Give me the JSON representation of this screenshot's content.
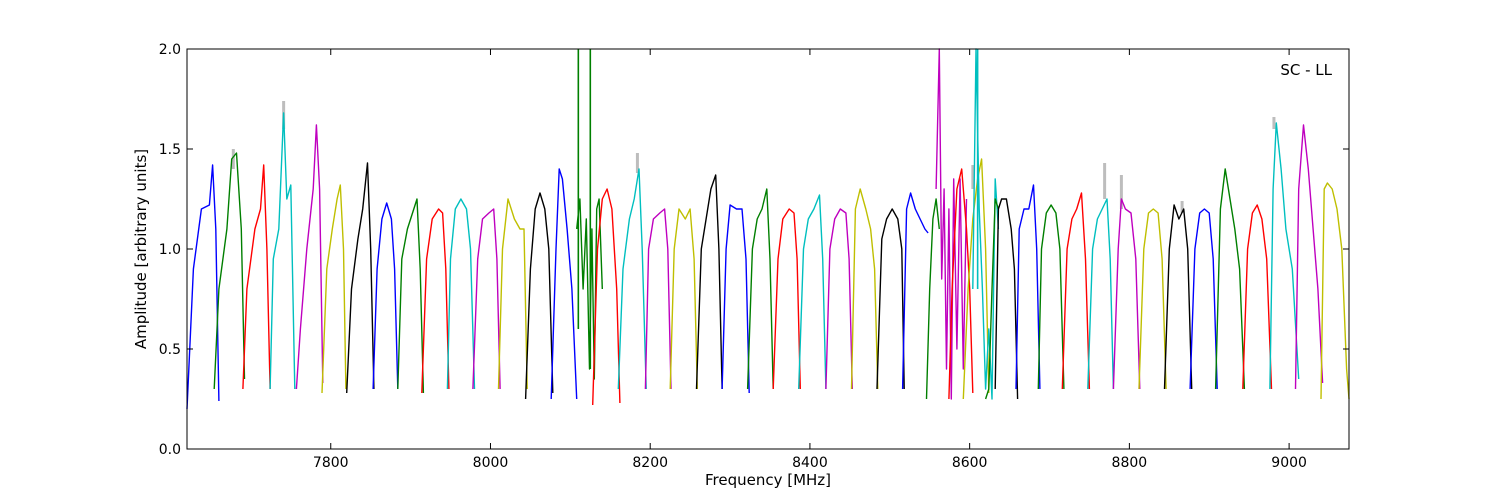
{
  "chart_data": {
    "type": "line",
    "annotation": "SC - LL",
    "xlabel": "Frequency [MHz]",
    "ylabel": "Amplitude [arbitrary units]",
    "xlim": [
      7620,
      9075
    ],
    "ylim": [
      0.0,
      2.0
    ],
    "xticks": [
      7800,
      8000,
      8200,
      8400,
      8600,
      8800,
      9000
    ],
    "yticks": [
      0.0,
      0.5,
      1.0,
      1.5,
      2.0
    ],
    "xtick_labels": [
      "7800",
      "8000",
      "8200",
      "8400",
      "8600",
      "8800",
      "9000"
    ],
    "ytick_labels": [
      "0.0",
      "0.5",
      "1.0",
      "1.5",
      "2.0"
    ],
    "grid": false,
    "colors": {
      "blue": "#0000ff",
      "green": "#007f00",
      "red": "#ff0000",
      "cyan": "#00bfbf",
      "magenta": "#bf00bf",
      "olive": "#bfbf00",
      "black": "#000000",
      "shadow": "#bdbdbd"
    },
    "series": [
      {
        "color": "blue",
        "x": [
          7620,
          7628,
          7638,
          7648,
          7652,
          7656,
          7660
        ],
        "y": [
          0.2,
          0.9,
          1.2,
          1.22,
          1.42,
          1.1,
          0.24
        ]
      },
      {
        "color": "green",
        "x": [
          7654,
          7660,
          7670,
          7676,
          7682,
          7688,
          7692
        ],
        "y": [
          0.3,
          0.8,
          1.1,
          1.45,
          1.48,
          1.1,
          0.35
        ]
      },
      {
        "color": "red",
        "x": [
          7690,
          7695,
          7705,
          7712,
          7716,
          7720,
          7724
        ],
        "y": [
          0.3,
          0.8,
          1.1,
          1.2,
          1.42,
          1.0,
          0.3
        ]
      },
      {
        "color": "cyan",
        "x": [
          7724,
          7728,
          7735,
          7741,
          7745,
          7750,
          7755
        ],
        "y": [
          0.3,
          0.95,
          1.1,
          1.68,
          1.25,
          1.32,
          0.3
        ]
      },
      {
        "color": "magenta",
        "x": [
          7757,
          7762,
          7770,
          7778,
          7782,
          7786,
          7790
        ],
        "y": [
          0.3,
          0.6,
          1.0,
          1.3,
          1.62,
          1.3,
          0.33
        ]
      },
      {
        "color": "olive",
        "x": [
          7789,
          7795,
          7802,
          7808,
          7812,
          7816,
          7819
        ],
        "y": [
          0.28,
          0.9,
          1.1,
          1.25,
          1.32,
          1.0,
          0.3
        ]
      },
      {
        "color": "black",
        "x": [
          7820,
          7826,
          7834,
          7840,
          7846,
          7850,
          7854
        ],
        "y": [
          0.28,
          0.8,
          1.05,
          1.2,
          1.43,
          1.0,
          0.3
        ]
      },
      {
        "color": "blue",
        "x": [
          7853,
          7858,
          7864,
          7870,
          7876,
          7880,
          7884
        ],
        "y": [
          0.3,
          0.9,
          1.15,
          1.23,
          1.15,
          0.9,
          0.3
        ]
      },
      {
        "color": "green",
        "x": [
          7884,
          7889,
          7896,
          7904,
          7908,
          7912,
          7916
        ],
        "y": [
          0.3,
          0.95,
          1.1,
          1.2,
          1.25,
          0.9,
          0.28
        ]
      },
      {
        "color": "red",
        "x": [
          7914,
          7920,
          7927,
          7935,
          7940,
          7944,
          7948
        ],
        "y": [
          0.28,
          0.95,
          1.15,
          1.2,
          1.18,
          0.9,
          0.3
        ]
      },
      {
        "color": "cyan",
        "x": [
          7946,
          7950,
          7956,
          7963,
          7970,
          7975,
          7980
        ],
        "y": [
          0.3,
          0.95,
          1.2,
          1.25,
          1.2,
          1.0,
          0.3
        ]
      },
      {
        "color": "magenta",
        "x": [
          7978,
          7984,
          7990,
          7998,
          8004,
          8008,
          8012
        ],
        "y": [
          0.3,
          0.95,
          1.15,
          1.18,
          1.2,
          0.95,
          0.3
        ]
      },
      {
        "color": "olive",
        "x": [
          8010,
          8015,
          8022,
          8030,
          8037,
          8042,
          8046
        ],
        "y": [
          0.3,
          1.0,
          1.25,
          1.15,
          1.1,
          1.1,
          0.3
        ]
      },
      {
        "color": "black",
        "x": [
          8044,
          8050,
          8056,
          8062,
          8068,
          8073,
          8078
        ],
        "y": [
          0.25,
          0.9,
          1.2,
          1.28,
          1.2,
          1.0,
          0.28
        ]
      },
      {
        "color": "blue",
        "x": [
          8076,
          8082,
          8086,
          8090,
          8096,
          8102,
          8108
        ],
        "y": [
          0.25,
          1.0,
          1.4,
          1.35,
          1.1,
          0.8,
          0.25
        ]
      },
      {
        "color": "green",
        "x": [
          8108,
          8112,
          8116,
          8120,
          8124,
          8127,
          8130,
          8133,
          8136,
          8140
        ],
        "y": [
          1.1,
          1.25,
          0.8,
          1.15,
          0.4,
          1.1,
          0.35,
          1.2,
          1.25,
          0.8
        ]
      },
      {
        "color": "red",
        "x": [
          8128,
          8134,
          8140,
          8146,
          8152,
          8158,
          8162
        ],
        "y": [
          0.22,
          1.0,
          1.25,
          1.3,
          1.2,
          0.8,
          0.23
        ]
      },
      {
        "color": "cyan",
        "x": [
          8160,
          8166,
          8174,
          8180,
          8186,
          8190,
          8195
        ],
        "y": [
          0.3,
          0.9,
          1.15,
          1.25,
          1.4,
          1.0,
          0.3
        ]
      },
      {
        "color": "magenta",
        "x": [
          8194,
          8198,
          8204,
          8212,
          8218,
          8222,
          8226
        ],
        "y": [
          0.3,
          1.0,
          1.15,
          1.18,
          1.2,
          1.0,
          0.3
        ]
      },
      {
        "color": "olive",
        "x": [
          8225,
          8230,
          8236,
          8244,
          8250,
          8255,
          8259
        ],
        "y": [
          0.3,
          1.0,
          1.2,
          1.15,
          1.2,
          0.95,
          0.3
        ]
      },
      {
        "color": "black",
        "x": [
          8258,
          8264,
          8270,
          8276,
          8282,
          8286,
          8290
        ],
        "y": [
          0.3,
          1.0,
          1.15,
          1.3,
          1.37,
          1.0,
          0.3
        ]
      },
      {
        "color": "blue",
        "x": [
          8290,
          8295,
          8300,
          8308,
          8315,
          8320,
          8324
        ],
        "y": [
          0.3,
          1.0,
          1.22,
          1.2,
          1.2,
          0.95,
          0.28
        ]
      },
      {
        "color": "green",
        "x": [
          8322,
          8328,
          8334,
          8340,
          8346,
          8350,
          8354
        ],
        "y": [
          0.3,
          1.0,
          1.15,
          1.2,
          1.3,
          0.95,
          0.3
        ]
      },
      {
        "color": "red",
        "x": [
          8354,
          8360,
          8366,
          8374,
          8380,
          8384,
          8388
        ],
        "y": [
          0.3,
          0.95,
          1.15,
          1.2,
          1.18,
          0.95,
          0.3
        ]
      },
      {
        "color": "cyan",
        "x": [
          8386,
          8392,
          8398,
          8405,
          8412,
          8416,
          8420
        ],
        "y": [
          0.3,
          1.0,
          1.15,
          1.2,
          1.27,
          0.95,
          0.3
        ]
      },
      {
        "color": "magenta",
        "x": [
          8420,
          8425,
          8431,
          8438,
          8445,
          8449,
          8453
        ],
        "y": [
          0.3,
          1.0,
          1.15,
          1.2,
          1.18,
          0.95,
          0.3
        ]
      },
      {
        "color": "olive",
        "x": [
          8452,
          8457,
          8463,
          8470,
          8476,
          8481,
          8485
        ],
        "y": [
          0.3,
          1.2,
          1.3,
          1.2,
          1.1,
          0.9,
          0.3
        ]
      },
      {
        "color": "black",
        "x": [
          8484,
          8490,
          8496,
          8503,
          8510,
          8515,
          8518
        ],
        "y": [
          0.3,
          1.05,
          1.15,
          1.2,
          1.15,
          1.0,
          0.3
        ]
      },
      {
        "color": "blue",
        "x": [
          8516,
          8521,
          8526,
          8532,
          8538,
          8544,
          8548
        ],
        "y": [
          0.3,
          1.2,
          1.28,
          1.2,
          1.15,
          1.1,
          1.08
        ]
      },
      {
        "color": "green",
        "x": [
          8546,
          8550,
          8554,
          8558,
          8562
        ],
        "y": [
          0.25,
          0.8,
          1.15,
          1.25,
          1.1
        ]
      },
      {
        "color": "magenta",
        "x": [
          8558,
          8562,
          8565,
          8568,
          8571,
          8574,
          8577,
          8580,
          8584,
          8588,
          8592,
          8596
        ],
        "y": [
          1.3,
          2.0,
          0.85,
          1.3,
          0.4,
          1.2,
          0.25,
          1.35,
          0.5,
          1.35,
          0.4,
          1.25
        ]
      },
      {
        "color": "red",
        "x": [
          8574,
          8578,
          8584,
          8590,
          8596,
          8600,
          8604
        ],
        "y": [
          0.25,
          0.8,
          1.3,
          1.4,
          1.1,
          0.8,
          0.28
        ]
      },
      {
        "color": "olive",
        "x": [
          8592,
          8598,
          8604,
          8610,
          8615,
          8620,
          8624
        ],
        "y": [
          0.25,
          0.8,
          1.15,
          1.35,
          1.45,
          1.0,
          0.28
        ]
      },
      {
        "color": "cyan",
        "x": [
          8604,
          8608,
          8612,
          8616,
          8620,
          8624,
          8628,
          8632,
          8636
        ],
        "y": [
          0.8,
          2.0,
          1.2,
          0.8,
          0.3,
          0.6,
          0.25,
          1.35,
          1.1
        ]
      },
      {
        "color": "green",
        "x": [
          8620,
          8624,
          8628,
          8632,
          8636
        ],
        "y": [
          0.25,
          0.3,
          0.8,
          1.25,
          1.2
        ]
      },
      {
        "color": "black",
        "x": [
          8632,
          8636,
          8640,
          8646,
          8652,
          8656,
          8660
        ],
        "y": [
          0.3,
          1.2,
          1.25,
          1.25,
          1.1,
          0.9,
          0.25
        ]
      },
      {
        "color": "blue",
        "x": [
          8658,
          8662,
          8668,
          8674,
          8680,
          8684,
          8688
        ],
        "y": [
          0.3,
          1.1,
          1.2,
          1.2,
          1.32,
          1.0,
          0.3
        ]
      },
      {
        "color": "green",
        "x": [
          8686,
          8690,
          8696,
          8702,
          8708,
          8713,
          8718
        ],
        "y": [
          0.3,
          1.0,
          1.18,
          1.22,
          1.18,
          1.0,
          0.3
        ]
      },
      {
        "color": "red",
        "x": [
          8716,
          8722,
          8728,
          8734,
          8740,
          8745,
          8750
        ],
        "y": [
          0.3,
          1.0,
          1.15,
          1.2,
          1.28,
          0.95,
          0.3
        ]
      },
      {
        "color": "cyan",
        "x": [
          8748,
          8754,
          8760,
          8766,
          8772,
          8776,
          8780
        ],
        "y": [
          0.3,
          1.0,
          1.15,
          1.2,
          1.25,
          0.95,
          0.3
        ]
      },
      {
        "color": "magenta",
        "x": [
          8780,
          8786,
          8790,
          8795,
          8802,
          8808,
          8813
        ],
        "y": [
          0.3,
          1.0,
          1.25,
          1.2,
          1.18,
          0.95,
          0.3
        ]
      },
      {
        "color": "olive",
        "x": [
          8812,
          8818,
          8824,
          8830,
          8836,
          8841,
          8846
        ],
        "y": [
          0.3,
          1.0,
          1.18,
          1.2,
          1.18,
          0.95,
          0.3
        ]
      },
      {
        "color": "black",
        "x": [
          8844,
          8850,
          8856,
          8862,
          8868,
          8873,
          8878
        ],
        "y": [
          0.3,
          1.0,
          1.22,
          1.15,
          1.2,
          1.0,
          0.3
        ]
      },
      {
        "color": "blue",
        "x": [
          8876,
          8882,
          8888,
          8894,
          8900,
          8905,
          8910
        ],
        "y": [
          0.3,
          1.0,
          1.18,
          1.2,
          1.18,
          0.95,
          0.3
        ]
      },
      {
        "color": "green",
        "x": [
          8908,
          8914,
          8920,
          8926,
          8932,
          8938,
          8944
        ],
        "y": [
          0.3,
          1.2,
          1.4,
          1.25,
          1.1,
          0.9,
          0.3
        ]
      },
      {
        "color": "red",
        "x": [
          8942,
          8948,
          8954,
          8960,
          8966,
          8972,
          8978
        ],
        "y": [
          0.3,
          1.0,
          1.18,
          1.22,
          1.15,
          0.95,
          0.3
        ]
      },
      {
        "color": "cyan",
        "x": [
          8976,
          8980,
          8984,
          8990,
          8996,
          9004,
          9012
        ],
        "y": [
          0.3,
          1.3,
          1.63,
          1.4,
          1.1,
          0.9,
          0.35
        ]
      },
      {
        "color": "magenta",
        "x": [
          9008,
          9012,
          9018,
          9024,
          9030,
          9036,
          9042
        ],
        "y": [
          0.3,
          1.3,
          1.62,
          1.4,
          1.1,
          0.8,
          0.33
        ]
      },
      {
        "color": "olive",
        "x": [
          9040,
          9044,
          9048,
          9054,
          9060,
          9066,
          9072,
          9075
        ],
        "y": [
          0.25,
          1.3,
          1.33,
          1.3,
          1.2,
          1.0,
          0.4,
          0.25
        ]
      }
    ],
    "shadow_spikes": [
      {
        "x": 7741,
        "y": [
          1.6,
          1.74
        ]
      },
      {
        "x": 7678,
        "y": [
          1.4,
          1.5
        ]
      },
      {
        "x": 8184,
        "y": [
          1.38,
          1.48
        ]
      },
      {
        "x": 8769,
        "y": [
          1.25,
          1.43
        ]
      },
      {
        "x": 8790,
        "y": [
          1.2,
          1.37
        ]
      },
      {
        "x": 8866,
        "y": [
          1.18,
          1.24
        ]
      },
      {
        "x": 8981,
        "y": [
          1.6,
          1.66
        ]
      },
      {
        "x": 8604,
        "y": [
          1.3,
          1.42
        ]
      }
    ],
    "vertical_spikes": [
      {
        "color": "green",
        "x": 8110,
        "y": [
          0.6,
          2.0
        ]
      },
      {
        "color": "green",
        "x": 8125,
        "y": [
          0.4,
          2.0
        ]
      },
      {
        "color": "cyan",
        "x": 8610,
        "y": [
          0.8,
          2.0
        ]
      }
    ]
  }
}
